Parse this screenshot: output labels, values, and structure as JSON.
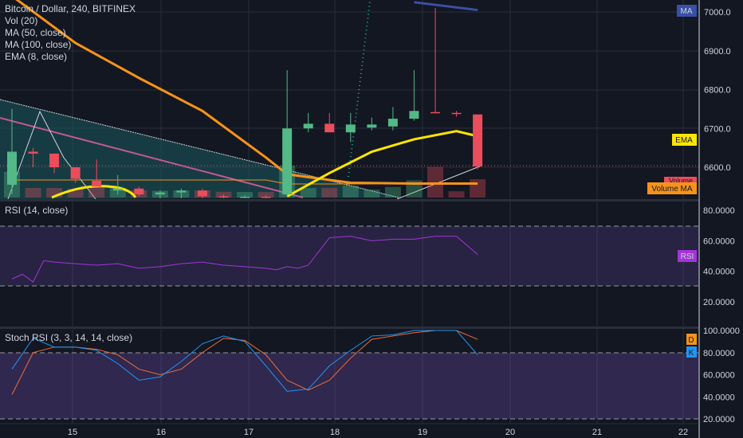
{
  "legend": {
    "symbol": "Bitcoin / Dollar, 240, BITFINEX",
    "vol": "Vol (20)",
    "ma50": "MA (50, close)",
    "ma100": "MA (100, close)",
    "ema8": "EMA (8, close)"
  },
  "rsi_title": "RSI (14, close)",
  "stoch_title": "Stoch RSI (3, 3, 14, 14, close)",
  "badges": {
    "ma": "MA",
    "ema": "EMA",
    "volume": "Volume",
    "volume_ma": "Volume MA",
    "rsi": "RSI",
    "d": "D",
    "k": "K"
  },
  "colors": {
    "background": "#131722",
    "up": "#53b987",
    "down": "#eb4d5c",
    "ma50": "#f7931a",
    "ema": "#ffe600",
    "ma100": "#3a4fa8",
    "pink_line": "#c2588f",
    "rsi_line": "#a235d9",
    "stoch_k": "#2196f3",
    "stoch_d": "#f26b38"
  },
  "chart_data": [
    {
      "type": "candlestick",
      "title": "Bitcoin / Dollar, 240, BITFINEX",
      "x_ticks": [
        "15",
        "16",
        "17",
        "18",
        "19",
        "20",
        "21",
        "22"
      ],
      "y_ticks": [
        "7000.0",
        "6900.0",
        "6800.0",
        "6700.0",
        "6600.0"
      ],
      "ylim": [
        6520,
        7030
      ],
      "candles": [
        {
          "o": 6555,
          "h": 6750,
          "l": 6530,
          "c": 6640
        },
        {
          "o": 6640,
          "h": 6650,
          "l": 6600,
          "c": 6635
        },
        {
          "o": 6635,
          "h": 6635,
          "l": 6585,
          "c": 6600
        },
        {
          "o": 6600,
          "h": 6600,
          "l": 6560,
          "c": 6570
        },
        {
          "o": 6565,
          "h": 6620,
          "l": 6550,
          "c": 6550
        },
        {
          "o": 6540,
          "h": 6580,
          "l": 6530,
          "c": 6545
        },
        {
          "o": 6545,
          "h": 6550,
          "l": 6525,
          "c": 6530
        },
        {
          "o": 6530,
          "h": 6540,
          "l": 6520,
          "c": 6535
        },
        {
          "o": 6535,
          "h": 6545,
          "l": 6520,
          "c": 6540
        },
        {
          "o": 6540,
          "h": 6545,
          "l": 6520,
          "c": 6525
        },
        {
          "o": 6525,
          "h": 6530,
          "l": 6520,
          "c": 6522
        },
        {
          "o": 6522,
          "h": 6528,
          "l": 6520,
          "c": 6524
        },
        {
          "o": 6524,
          "h": 6528,
          "l": 6520,
          "c": 6521
        },
        {
          "o": 6530,
          "h": 6850,
          "l": 6525,
          "c": 6700
        },
        {
          "o": 6700,
          "h": 6740,
          "l": 6690,
          "c": 6712
        },
        {
          "o": 6712,
          "h": 6740,
          "l": 6690,
          "c": 6690
        },
        {
          "o": 6690,
          "h": 6740,
          "l": 6665,
          "c": 6710
        },
        {
          "o": 6702,
          "h": 6728,
          "l": 6695,
          "c": 6710
        },
        {
          "o": 6705,
          "h": 6755,
          "l": 6695,
          "c": 6725
        },
        {
          "o": 6725,
          "h": 6850,
          "l": 6720,
          "c": 6745
        },
        {
          "o": 6742,
          "h": 7010,
          "l": 6740,
          "c": 6740
        },
        {
          "o": 6740,
          "h": 6745,
          "l": 6730,
          "c": 6738
        },
        {
          "o": 6736,
          "h": 6736,
          "l": 6595,
          "c": 6602
        }
      ],
      "series": [
        {
          "name": "MA (50, close)",
          "x": [
            0,
            3,
            6,
            9,
            12,
            13,
            16,
            19,
            22
          ],
          "y": [
            7060,
            6920,
            6830,
            6745,
            6625,
            6582,
            6560,
            6558,
            6558
          ]
        },
        {
          "name": "EMA (8, close)",
          "x": [
            13,
            15,
            17,
            19,
            21,
            22
          ],
          "y": [
            6525,
            6585,
            6640,
            6672,
            6693,
            6680
          ]
        },
        {
          "name": "MA (100, close)",
          "x": [
            19,
            22
          ],
          "y": [
            7025,
            7005
          ]
        }
      ],
      "current_price": 6602
    },
    {
      "type": "line",
      "title": "RSI (14, close)",
      "y_ticks": [
        "80.0000",
        "60.0000",
        "40.0000",
        "20.0000"
      ],
      "ylim": [
        10,
        85
      ],
      "bands": [
        70,
        30
      ],
      "x": [
        0,
        0.5,
        1,
        1.5,
        2,
        3,
        4,
        5,
        6,
        7,
        8,
        9,
        10,
        11,
        12,
        12.5,
        13,
        13.5,
        14,
        15,
        16,
        17,
        18,
        19,
        20,
        21,
        22
      ],
      "series": [
        {
          "name": "RSI",
          "values": [
            35,
            38,
            33,
            47,
            46,
            45,
            44,
            45,
            42,
            43,
            45,
            46,
            44,
            43,
            42,
            41,
            43,
            42,
            44,
            62,
            63,
            60,
            61,
            61,
            63,
            63,
            51
          ]
        }
      ]
    },
    {
      "type": "line",
      "title": "Stoch RSI (3, 3, 14, 14, close)",
      "y_ticks": [
        "100.0000",
        "80.0000",
        "60.0000",
        "40.0000",
        "20.0000"
      ],
      "ylim": [
        15,
        103
      ],
      "bands": [
        80,
        20
      ],
      "x": [
        0,
        1,
        2,
        3,
        4,
        5,
        6,
        7,
        8,
        9,
        10,
        11,
        12,
        13,
        14,
        15,
        16,
        17,
        18,
        19,
        20,
        21,
        22
      ],
      "series": [
        {
          "name": "K",
          "values": [
            65,
            93,
            85,
            85,
            82,
            70,
            55,
            58,
            72,
            88,
            95,
            90,
            68,
            45,
            47,
            68,
            82,
            95,
            96,
            100,
            100,
            100,
            78
          ]
        },
        {
          "name": "D",
          "values": [
            42,
            80,
            85,
            85,
            83,
            78,
            65,
            60,
            65,
            80,
            93,
            91,
            78,
            55,
            46,
            55,
            75,
            92,
            95,
            98,
            100,
            100,
            92
          ]
        }
      ]
    }
  ]
}
